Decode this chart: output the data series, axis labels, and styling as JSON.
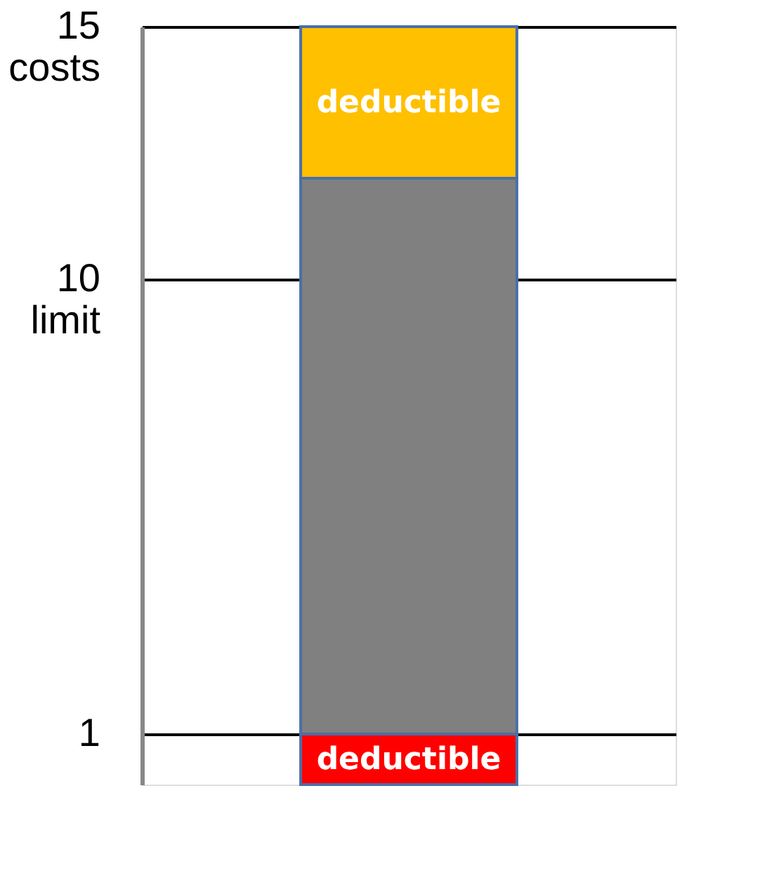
{
  "chart_data": {
    "type": "bar",
    "stacked": true,
    "categories": [
      null
    ],
    "series": [
      {
        "name": "deductible",
        "color": "#ff0000",
        "values": [
          1
        ]
      },
      {
        "color": "#808080",
        "values": [
          11
        ]
      },
      {
        "name": "deductible",
        "color": "#ffc000",
        "values": [
          3
        ]
      }
    ],
    "ylim": [
      0,
      15
    ],
    "yticks": [
      1,
      {
        "value": 10,
        "label": "10\nlimit"
      },
      {
        "value": 15,
        "label": "15\ncosts"
      }
    ],
    "grid": "y",
    "tick_labels": "y",
    "legend": false
  }
}
